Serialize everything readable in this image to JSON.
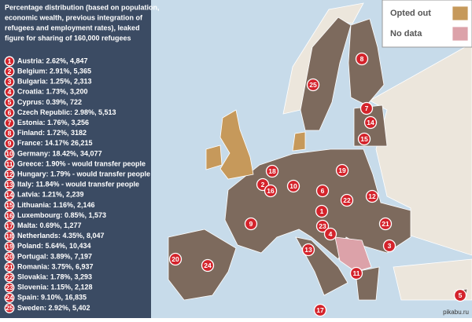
{
  "panel": {
    "title_lines": [
      "Percentage distribution (based on population,",
      "economic wealth, previous integration of",
      "refugees and employment rates), leaked",
      "figure for sharing of 160,000 refugees"
    ],
    "items": [
      {
        "number": 1,
        "text": "Austria: 2.62%, 4,847"
      },
      {
        "number": 2,
        "text": "Belgium: 2.91%, 5,365"
      },
      {
        "number": 3,
        "text": "Bulgaria: 1.25%, 2,313"
      },
      {
        "number": 4,
        "text": "Croatia: 1.73%, 3,200"
      },
      {
        "number": 5,
        "text": "Cyprus: 0.39%, 722"
      },
      {
        "number": 6,
        "text": "Czech Republic: 2.98%, 5,513"
      },
      {
        "number": 7,
        "text": "Estonia: 1.76%, 3,256"
      },
      {
        "number": 8,
        "text": "Finland: 1.72%, 3182"
      },
      {
        "number": 9,
        "text": "France: 14.17% 26,215"
      },
      {
        "number": 10,
        "text": "Germany: 18.42%, 34,077"
      },
      {
        "number": 11,
        "text": "Greece: 1.90% - would transfer people"
      },
      {
        "number": 12,
        "text": "Hungary: 1.79% - would transfer people"
      },
      {
        "number": 13,
        "text": "Italy: 11.84% - would transfer people"
      },
      {
        "number": 14,
        "text": "Latvia: 1.21%, 2,239"
      },
      {
        "number": 15,
        "text": "Lithuania: 1.16%, 2,146"
      },
      {
        "number": 16,
        "text": "Luxembourg: 0.85%, 1,573"
      },
      {
        "number": 17,
        "text": "Malta: 0.69%, 1,277"
      },
      {
        "number": 18,
        "text": "Netherlands: 4.35%, 8,047"
      },
      {
        "number": 19,
        "text": "Poland: 5.64%, 10,434"
      },
      {
        "number": 20,
        "text": "Portugal: 3.89%, 7,197"
      },
      {
        "number": 21,
        "text": "Romania: 3.75%, 6,937"
      },
      {
        "number": 22,
        "text": "Slovakia: 1.78%, 3,293"
      },
      {
        "number": 23,
        "text": "Slovenia: 1.15%, 2,128"
      },
      {
        "number": 24,
        "text": "Spain: 9.10%, 16,835"
      },
      {
        "number": 25,
        "text": "Sweden: 2.92%, 5,402"
      }
    ]
  },
  "map_markers": [
    8,
    25,
    7,
    14,
    15,
    18,
    2,
    16,
    10,
    19,
    6,
    22,
    12,
    1,
    23,
    4,
    21,
    9,
    13,
    3,
    11,
    20,
    24,
    17,
    5
  ],
  "legend": [
    "Opted out",
    "No data"
  ],
  "watermark": "pikabu.ru"
}
